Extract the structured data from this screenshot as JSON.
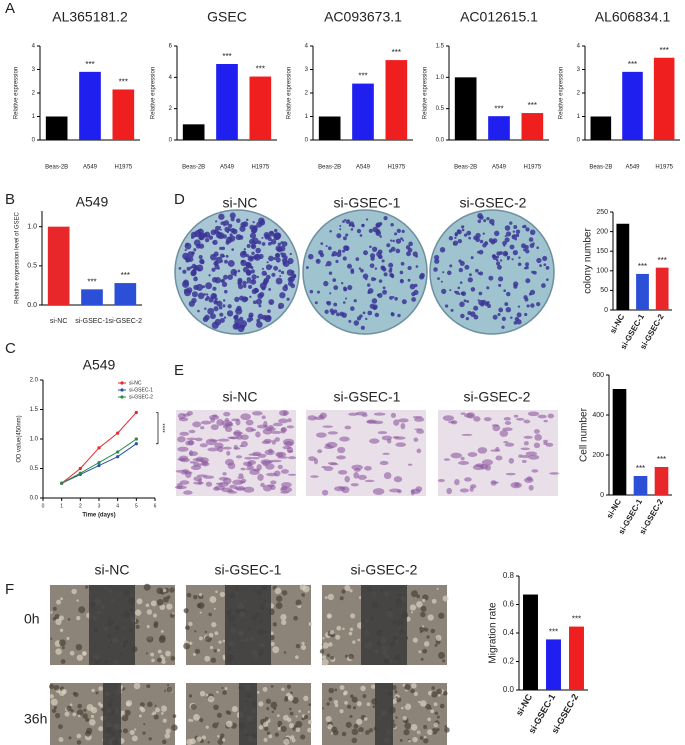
{
  "panel_labels": [
    "A",
    "B",
    "C",
    "D",
    "E",
    "F"
  ],
  "images": {
    "D": {
      "labels": [
        "si-NC",
        "si-GSEC-1",
        "si-GSEC-2"
      ]
    },
    "E": {
      "labels": [
        "si-NC",
        "si-GSEC-1",
        "si-GSEC-2"
      ]
    },
    "F": {
      "labels": [
        "si-NC",
        "si-GSEC-1",
        "si-GSEC-2"
      ],
      "times": [
        "0h",
        "36h"
      ]
    }
  },
  "chart_data": [
    {
      "type": "bar",
      "title": "AL365181.2",
      "ylabel": "Relative expression",
      "categories": [
        "Beas-2B",
        "A549",
        "H1975"
      ],
      "values": [
        1,
        2.9,
        2.15
      ],
      "colors": [
        "#000000",
        "#1f1ff0",
        "#f01f1f"
      ],
      "significance": [
        null,
        "***",
        "***"
      ],
      "ylim": [
        0,
        4
      ],
      "yticks": [
        0,
        1,
        2,
        3,
        4
      ]
    },
    {
      "type": "bar",
      "title": "GSEC",
      "ylabel": "Relative expression",
      "categories": [
        "Beas-2B",
        "A549",
        "H1975"
      ],
      "values": [
        1,
        4.85,
        4.05
      ],
      "colors": [
        "#000000",
        "#1f1ff0",
        "#f01f1f"
      ],
      "significance": [
        null,
        "***",
        "***"
      ],
      "ylim": [
        0,
        6
      ],
      "yticks": [
        0,
        2,
        4,
        6
      ]
    },
    {
      "type": "bar",
      "title": "AC093673.1",
      "ylabel": "Relative expression",
      "categories": [
        "Beas-2B",
        "A549",
        "H1975"
      ],
      "values": [
        1,
        2.4,
        3.4
      ],
      "colors": [
        "#000000",
        "#1f1ff0",
        "#f01f1f"
      ],
      "significance": [
        null,
        "***",
        "***"
      ],
      "ylim": [
        0,
        4
      ],
      "yticks": [
        0,
        1,
        2,
        3,
        4
      ]
    },
    {
      "type": "bar",
      "title": "AC012615.1",
      "ylabel": "Relative expression",
      "categories": [
        "Beas-2B",
        "A549",
        "H1975"
      ],
      "values": [
        1,
        0.38,
        0.43
      ],
      "colors": [
        "#000000",
        "#1f1ff0",
        "#f01f1f"
      ],
      "significance": [
        null,
        "***",
        "***"
      ],
      "ylim": [
        0,
        1.5
      ],
      "yticks": [
        {
          "value": 0,
          "label": "0.0"
        },
        {
          "value": 0.5,
          "label": "0.5"
        },
        {
          "value": 1,
          "label": "1.0"
        },
        {
          "value": 1.5,
          "label": "1.5"
        }
      ]
    },
    {
      "type": "bar",
      "title": "AL606834.1",
      "ylabel": "Relative expression",
      "categories": [
        "Beas-2B",
        "A549",
        "H1975"
      ],
      "values": [
        1,
        2.9,
        3.5
      ],
      "colors": [
        "#000000",
        "#1f1ff0",
        "#f01f1f"
      ],
      "significance": [
        null,
        "***",
        "***"
      ],
      "ylim": [
        0,
        4
      ],
      "yticks": [
        0,
        1,
        2,
        3,
        4
      ]
    },
    {
      "type": "bar",
      "title": "A549",
      "ylabel": "Relative expression level of GSEC",
      "categories": [
        "si-NC",
        "si-GSEC-1",
        "si-GSEC-2"
      ],
      "values": [
        1,
        0.2,
        0.28
      ],
      "colors": [
        "#e8272a",
        "#2c4fd8",
        "#2c4fd8"
      ],
      "significance": [
        null,
        "***",
        "***"
      ],
      "ylim": [
        0,
        1.2
      ],
      "yticks": [
        {
          "value": 0,
          "label": "0.0"
        },
        {
          "value": 0.5,
          "label": "0.5"
        },
        {
          "value": 1,
          "label": "1.0"
        }
      ]
    },
    {
      "type": "line",
      "title": "A549",
      "xlabel": "Time (days)",
      "ylabel": "OD value(450nm)",
      "annotation": "****",
      "x": [
        1,
        2,
        3,
        4,
        5
      ],
      "xlim": [
        0,
        6
      ],
      "xticks": [
        0,
        1,
        2,
        3,
        4,
        5,
        6
      ],
      "ylim": [
        0,
        2
      ],
      "yticks": [
        {
          "value": 0,
          "label": "0.0"
        },
        {
          "value": 0.5,
          "label": "0.5"
        },
        {
          "value": 1,
          "label": "1.0"
        },
        {
          "value": 1.5,
          "label": "1.5"
        },
        {
          "value": 2,
          "label": "2.0"
        }
      ],
      "series": [
        {
          "name": "si-NC",
          "color": "#e8272a",
          "values": [
            0.25,
            0.5,
            0.85,
            1.1,
            1.45
          ]
        },
        {
          "name": "si-GSEC-1",
          "color": "#2c4fa8",
          "values": [
            0.25,
            0.4,
            0.55,
            0.7,
            0.92
          ]
        },
        {
          "name": "si-GSEC-2",
          "color": "#2a8a4a",
          "values": [
            0.25,
            0.42,
            0.6,
            0.78,
            1.0
          ]
        }
      ]
    },
    {
      "type": "bar",
      "ylabel": "colony number",
      "categories": [
        "si-NC",
        "si-GSEC-1",
        "si-GSEC-2"
      ],
      "values": [
        220,
        92,
        108
      ],
      "colors": [
        "#000000",
        "#2c4fd8",
        "#e8272a"
      ],
      "significance": [
        null,
        "***",
        "***"
      ],
      "ylim": [
        0,
        250
      ],
      "yticks": [
        0,
        50,
        100,
        150,
        200,
        250
      ]
    },
    {
      "type": "bar",
      "ylabel": "Cell number",
      "categories": [
        "si-NC",
        "si-GSEC-1",
        "si-GSEC-2"
      ],
      "values": [
        530,
        95,
        140
      ],
      "colors": [
        "#000000",
        "#2c4fd8",
        "#e8272a"
      ],
      "significance": [
        null,
        "***",
        "***"
      ],
      "ylim": [
        0,
        600
      ],
      "yticks": [
        0,
        200,
        400,
        600
      ]
    },
    {
      "type": "bar",
      "ylabel": "Migration rate",
      "categories": [
        "si-NC",
        "si-GSEC-1",
        "si-GSEC-2"
      ],
      "values": [
        0.67,
        0.355,
        0.445
      ],
      "colors": [
        "#000000",
        "#1f1ff0",
        "#f01f1f"
      ],
      "significance": [
        null,
        "***",
        "***"
      ],
      "ylim": [
        0,
        0.8
      ],
      "yticks": [
        {
          "value": 0,
          "label": "0.0"
        },
        {
          "value": 0.2,
          "label": "0.2"
        },
        {
          "value": 0.4,
          "label": "0.4"
        },
        {
          "value": 0.6,
          "label": "0.6"
        },
        {
          "value": 0.8,
          "label": "0.8"
        }
      ]
    }
  ]
}
